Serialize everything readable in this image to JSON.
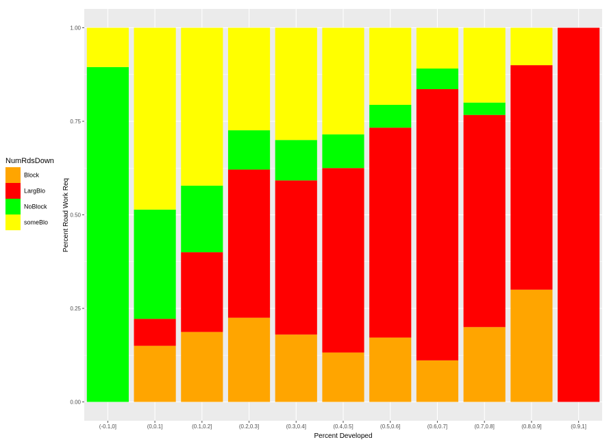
{
  "chart_data": {
    "type": "bar",
    "stacked": true,
    "xlabel": "Percent Developed",
    "ylabel": "Percent Road Work Req",
    "ylim": [
      0,
      1
    ],
    "y_ticks": [
      "0.00",
      "0.25",
      "0.50",
      "0.75",
      "1.00"
    ],
    "y_tick_values": [
      0,
      0.25,
      0.5,
      0.75,
      1
    ],
    "grid": true,
    "legend_position": "left",
    "legend_title": "NumRdsDown",
    "categories": [
      "(-0.1,0]",
      "(0,0.1]",
      "(0.1,0.2]",
      "(0.2,0.3]",
      "(0.3,0.4]",
      "(0.4,0.5]",
      "(0.5,0.6]",
      "(0.6,0.7]",
      "(0.7,0.8]",
      "(0.8,0.9]",
      "(0.9,1]"
    ],
    "series": [
      {
        "name": "Block",
        "color": "#FFA500",
        "values": [
          0.0,
          0.15,
          0.187,
          0.225,
          0.18,
          0.132,
          0.172,
          0.111,
          0.2,
          0.3,
          0.0
        ]
      },
      {
        "name": "LargBlo",
        "color": "#FF0000",
        "values": [
          0.0,
          0.072,
          0.213,
          0.396,
          0.412,
          0.493,
          0.561,
          0.725,
          0.567,
          0.6,
          1.0
        ]
      },
      {
        "name": "NoBlock",
        "color": "#00FF00",
        "values": [
          0.895,
          0.292,
          0.178,
          0.105,
          0.108,
          0.09,
          0.061,
          0.055,
          0.033,
          0.0,
          0.0
        ]
      },
      {
        "name": "someBlo",
        "color": "#FFFF00",
        "values": [
          0.105,
          0.486,
          0.422,
          0.274,
          0.3,
          0.285,
          0.206,
          0.109,
          0.2,
          0.1,
          0.0
        ]
      }
    ],
    "panel_color": "#EBEBEB",
    "grid_color": "#FFFFFF",
    "tick_color": "#4D4D4D"
  }
}
